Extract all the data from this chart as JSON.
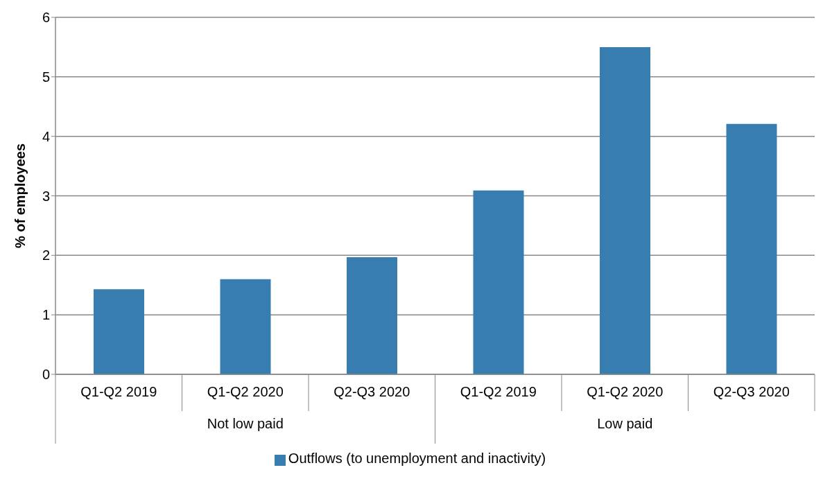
{
  "chart_data": {
    "type": "bar",
    "ylabel": "% of employees",
    "categories": [
      "Q1-Q2 2019",
      "Q1-Q2 2020",
      "Q2-Q3 2020",
      "Q1-Q2 2019",
      "Q1-Q2 2020",
      "Q2-Q3 2020"
    ],
    "series": [
      {
        "name": "Outflows (to unemployment and inactivity)",
        "color": "#387daf",
        "values": [
          1.43,
          1.6,
          1.97,
          3.09,
          5.5,
          4.21
        ]
      }
    ],
    "annotations": [
      "Not low paid",
      "Low paid"
    ],
    "ylim": [
      0,
      6
    ],
    "yticks": [
      0,
      1,
      2,
      3,
      4,
      5,
      6
    ],
    "grid": "y",
    "legend": "bottom"
  }
}
